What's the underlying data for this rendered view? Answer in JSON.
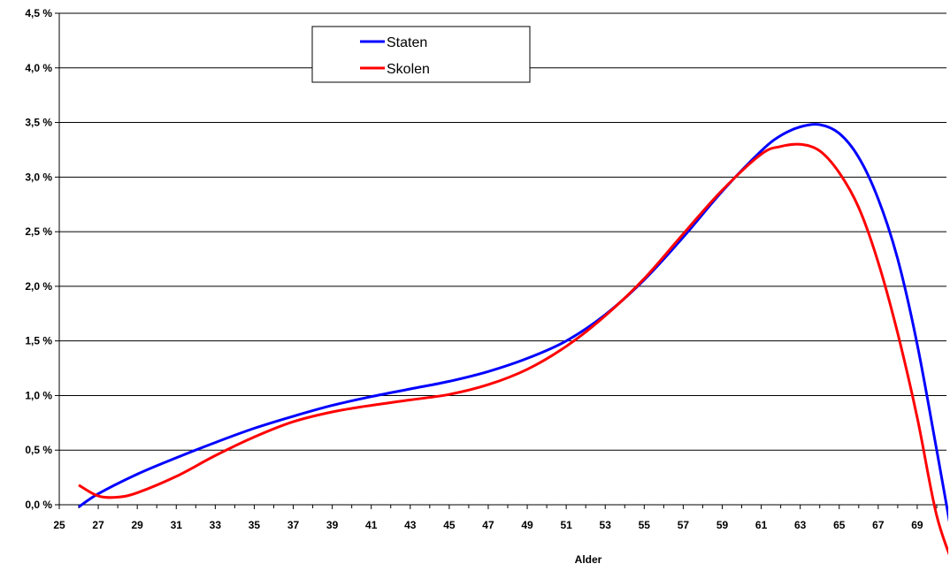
{
  "chart_data": {
    "type": "line",
    "title": "",
    "xlabel": "Alder",
    "ylabel": "",
    "xlim": [
      25,
      70.5
    ],
    "ylim": [
      0,
      4.5
    ],
    "x_ticks": [
      "25",
      "27",
      "29",
      "31",
      "33",
      "35",
      "37",
      "39",
      "41",
      "43",
      "45",
      "47",
      "49",
      "51",
      "53",
      "55",
      "57",
      "59",
      "61",
      "63",
      "65",
      "67",
      "69"
    ],
    "y_ticks": [
      "0,0 %",
      "0,5 %",
      "1,0 %",
      "1,5 %",
      "2,0 %",
      "2,5 %",
      "3,0 %",
      "3,5 %",
      "4,0 %",
      "4,5 %"
    ],
    "y_tick_values": [
      0,
      0.5,
      1.0,
      1.5,
      2.0,
      2.5,
      3.0,
      3.5,
      4.0,
      4.5
    ],
    "grid": true,
    "legend_position": "top-center",
    "series": [
      {
        "name": "Staten",
        "color": "#0000ff",
        "x": [
          26,
          27,
          29,
          31,
          33,
          35,
          37,
          39,
          41,
          43,
          45,
          47,
          49,
          51,
          53,
          55,
          57,
          59,
          61,
          62,
          63,
          64,
          65,
          66,
          67,
          68,
          69,
          70,
          71
        ],
        "y": [
          -0.02,
          0.1,
          0.28,
          0.43,
          0.57,
          0.7,
          0.81,
          0.91,
          0.99,
          1.06,
          1.13,
          1.22,
          1.34,
          1.5,
          1.74,
          2.06,
          2.45,
          2.87,
          3.24,
          3.38,
          3.46,
          3.48,
          3.4,
          3.18,
          2.8,
          2.25,
          1.47,
          0.5,
          -0.5
        ]
      },
      {
        "name": "Skolen",
        "color": "#ff0000",
        "x": [
          26,
          27,
          28,
          29,
          31,
          33,
          35,
          37,
          39,
          41,
          43,
          45,
          47,
          49,
          51,
          53,
          55,
          57,
          59,
          61,
          62,
          63,
          64,
          65,
          66,
          67,
          68,
          69,
          70,
          71
        ],
        "y": [
          0.18,
          0.08,
          0.07,
          0.11,
          0.26,
          0.45,
          0.62,
          0.76,
          0.85,
          0.91,
          0.96,
          1.01,
          1.1,
          1.24,
          1.45,
          1.73,
          2.07,
          2.48,
          2.88,
          3.21,
          3.28,
          3.3,
          3.24,
          3.04,
          2.72,
          2.22,
          1.57,
          0.8,
          -0.1,
          -0.62
        ]
      }
    ]
  }
}
